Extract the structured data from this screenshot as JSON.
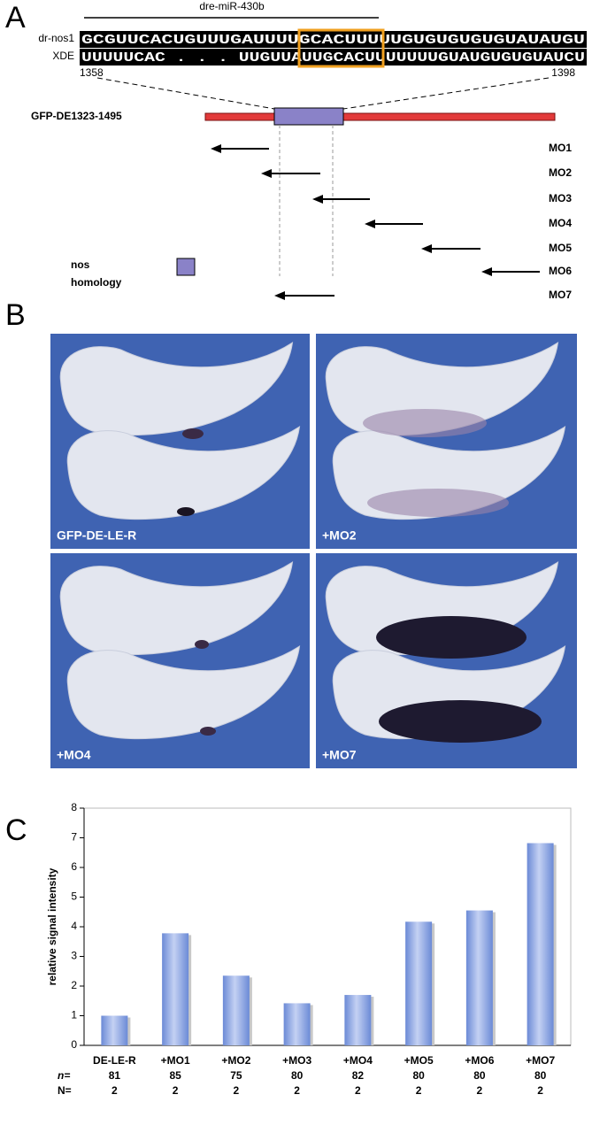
{
  "panel_letters": [
    "A",
    "B",
    "C"
  ],
  "panel_a": {
    "mirna": "dre-miR-430b",
    "rows": [
      {
        "label": "dr-nos1",
        "sequence": "GCGUUCACUGUUUGAUUUUGCACUUUUUGUGUGUGUGUAUAUGU"
      },
      {
        "label": "XDE",
        "sequence": "UUUUUCAC . . . UUGUUAUUGCACUUUUUUUGUAUGUGUGUAUCU"
      }
    ],
    "start": "1358",
    "end": "1398",
    "construct": "GFP-DE1323-1495",
    "morpholinos": [
      "MO1",
      "MO2",
      "MO3",
      "MO4",
      "MO5",
      "MO6",
      "MO7"
    ],
    "legend": [
      "nos",
      "homology"
    ]
  },
  "panel_b": {
    "labels": [
      "GFP-DE-LE-R",
      "+MO2",
      "+MO4",
      "+MO7"
    ]
  },
  "chart_data": {
    "type": "bar",
    "y_label": "relative signal intensity",
    "categories": [
      "DE-LE-R",
      "+MO1",
      "+MO2",
      "+MO3",
      "+MO4",
      "+MO5",
      "+MO6",
      "+MO7"
    ],
    "values": [
      1.0,
      3.78,
      2.35,
      1.42,
      1.7,
      4.17,
      4.55,
      6.82
    ],
    "color": "#6b8ad6",
    "ylim": [
      0,
      8
    ],
    "yticks": [
      0,
      1,
      2,
      3,
      4,
      5,
      6,
      7,
      8
    ],
    "n_label": "n=",
    "n": [
      81,
      85,
      75,
      80,
      82,
      80,
      80,
      80
    ],
    "N_label": "N=",
    "N": [
      2,
      2,
      2,
      2,
      2,
      2,
      2,
      2
    ]
  }
}
